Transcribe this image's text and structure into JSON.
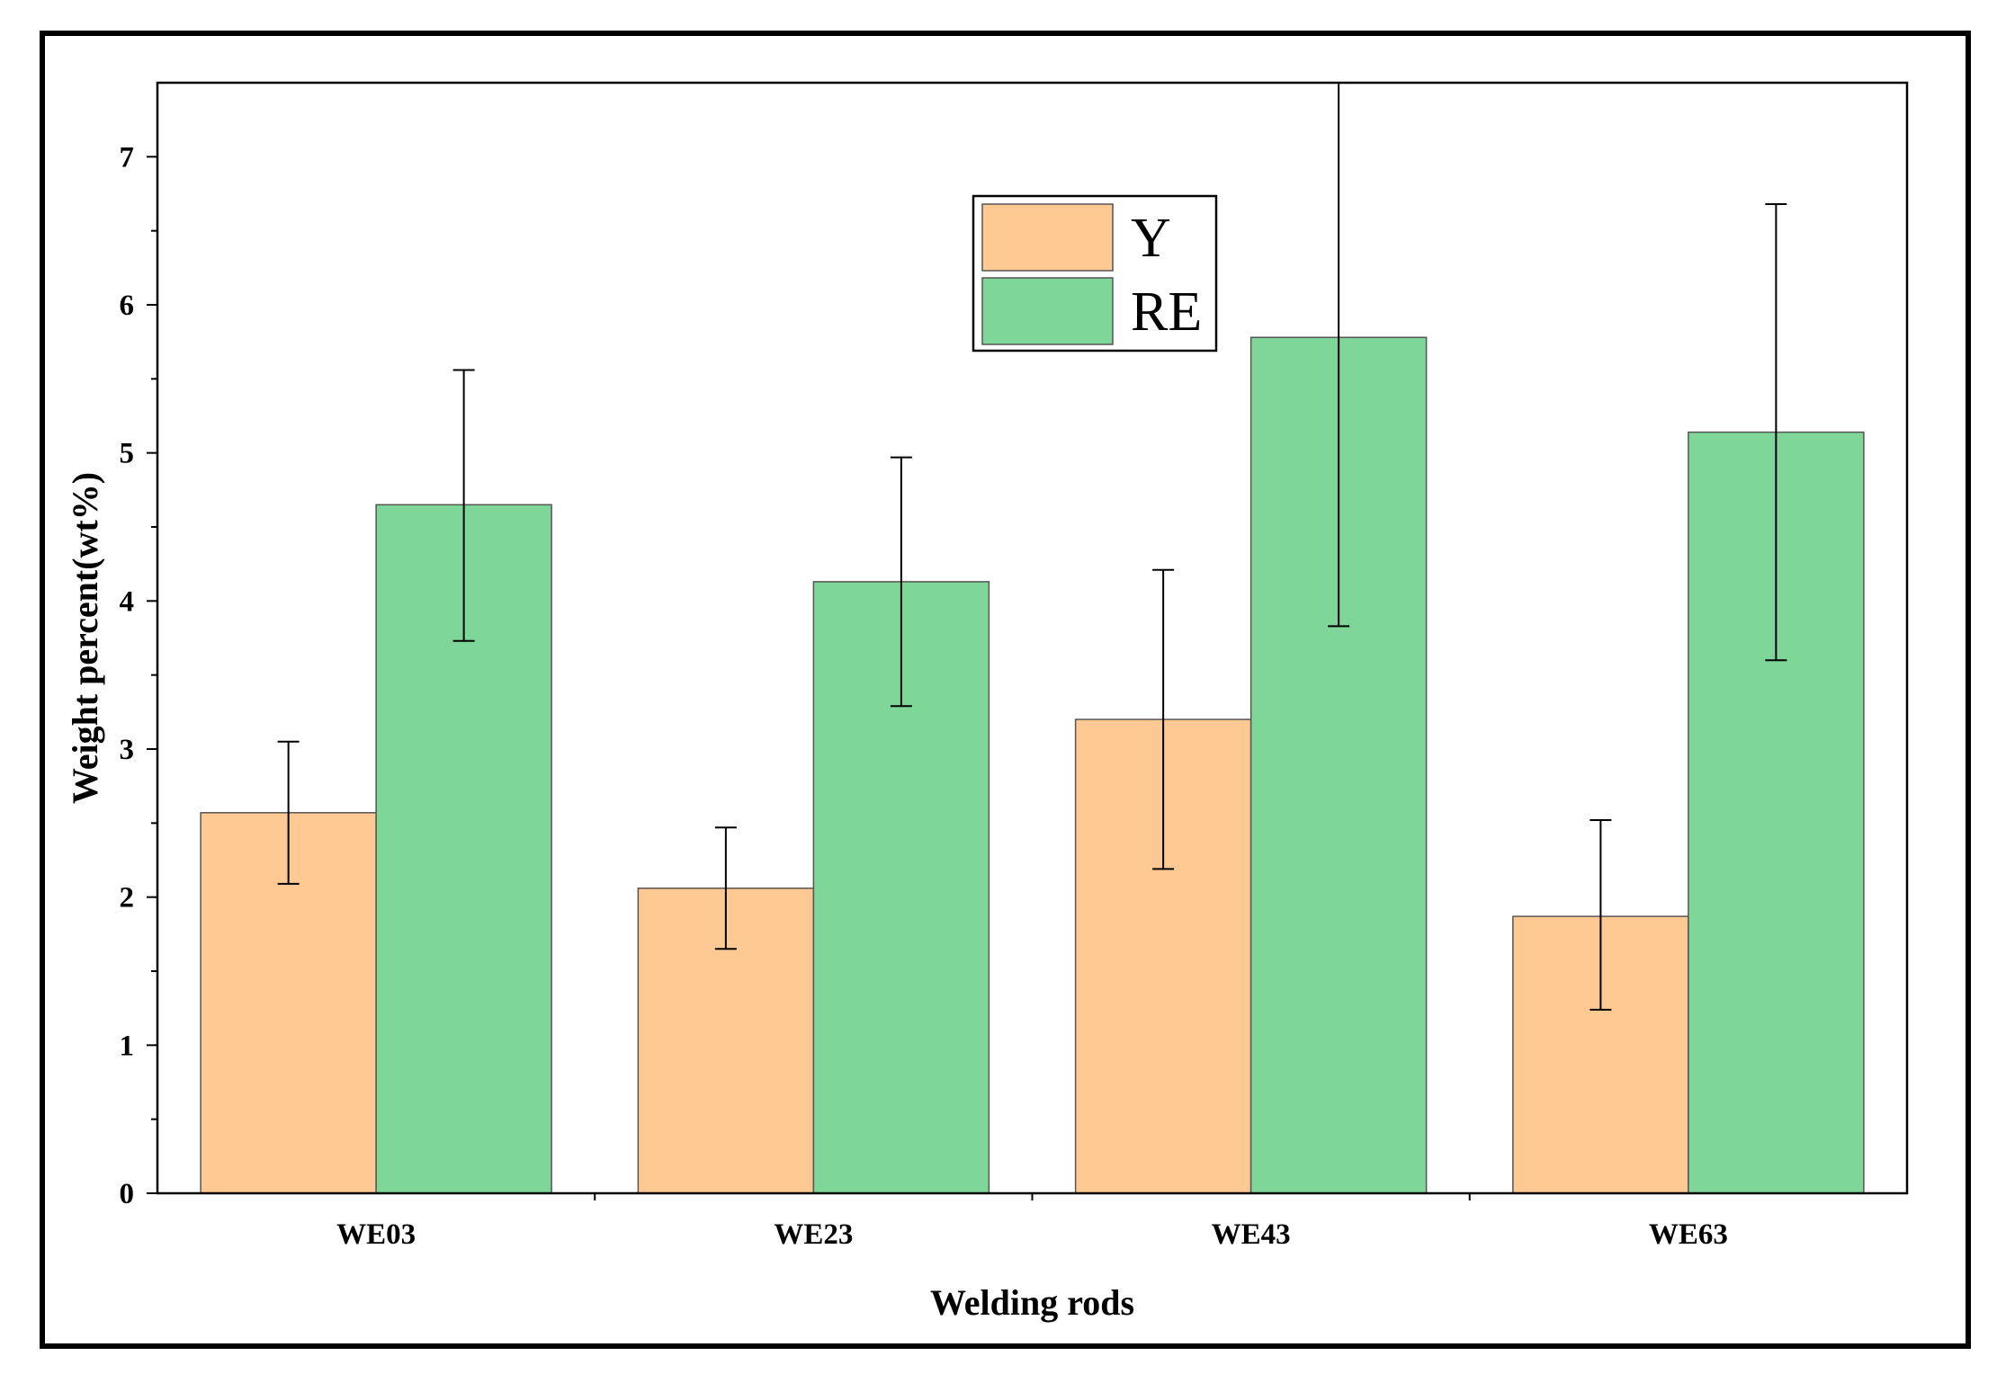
{
  "chart_data": {
    "type": "bar",
    "xlabel": "Welding rods",
    "ylabel": "Weight percent(wt%)",
    "categories": [
      "WE03",
      "WE23",
      "WE43",
      "WE63"
    ],
    "ylim": [
      0,
      7.5
    ],
    "yticks": [
      0,
      1,
      2,
      3,
      4,
      5,
      6,
      7
    ],
    "grid": false,
    "legend": "top-center",
    "series": [
      {
        "name": "Y",
        "color": "#FFC994",
        "values": [
          2.57,
          2.06,
          3.2,
          1.87
        ],
        "err_low": [
          2.09,
          1.65,
          2.19,
          1.24
        ],
        "err_high": [
          3.05,
          2.47,
          4.21,
          2.52
        ]
      },
      {
        "name": "RE",
        "color": "#7FD699",
        "values": [
          4.65,
          4.13,
          5.78,
          5.14
        ],
        "err_low": [
          3.73,
          3.29,
          3.83,
          3.6
        ],
        "err_high": [
          5.56,
          4.97,
          7.73,
          6.68
        ]
      }
    ]
  }
}
